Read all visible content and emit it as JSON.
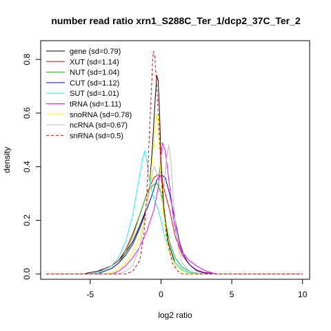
{
  "chart_data": {
    "type": "line",
    "title": "number read ratio xrn1_S288C_Ter_1/dcp2_37C_Ter_2",
    "xlabel": "log2 ratio",
    "ylabel": "density",
    "xlim": [
      -8.5,
      10.5
    ],
    "ylim": [
      -0.02,
      0.87
    ],
    "x_ticks": [
      -5,
      0,
      5,
      10
    ],
    "x_tick_labels": [
      "-5",
      "0",
      "5",
      "10"
    ],
    "y_ticks": [
      0.0,
      0.2,
      0.4,
      0.6,
      0.8
    ],
    "y_tick_labels": [
      "0.0",
      "0.2",
      "0.4",
      "0.6",
      "0.8"
    ],
    "grid": false,
    "legend_position": "top-left",
    "series": [
      {
        "name": "gene (sd=0.79)",
        "color": "#000000",
        "dash": "solid",
        "points": [
          [
            -8.1,
            0
          ],
          [
            -5.5,
            0
          ],
          [
            -4.5,
            0.01
          ],
          [
            -3.5,
            0.03
          ],
          [
            -3,
            0.05
          ],
          [
            -2.5,
            0.08
          ],
          [
            -2,
            0.12
          ],
          [
            -1.5,
            0.18
          ],
          [
            -1.2,
            0.22
          ],
          [
            -1,
            0.25
          ],
          [
            -0.8,
            0.33
          ],
          [
            -0.6,
            0.48
          ],
          [
            -0.4,
            0.66
          ],
          [
            -0.3,
            0.74
          ],
          [
            -0.2,
            0.72
          ],
          [
            -0.1,
            0.6
          ],
          [
            0,
            0.42
          ],
          [
            0.2,
            0.25
          ],
          [
            0.5,
            0.12
          ],
          [
            1,
            0.04
          ],
          [
            1.5,
            0.015
          ],
          [
            2,
            0.005
          ],
          [
            3,
            0
          ],
          [
            10,
            0
          ]
        ]
      },
      {
        "name": "XUT (sd=1.14)",
        "color": "#ff0000",
        "dash": "solid",
        "points": [
          [
            -8.1,
            0
          ],
          [
            -5,
            0
          ],
          [
            -4.5,
            0.005
          ],
          [
            -4,
            0.02
          ],
          [
            -3.5,
            0.03
          ],
          [
            -3,
            0.05
          ],
          [
            -2.5,
            0.09
          ],
          [
            -2,
            0.15
          ],
          [
            -1.5,
            0.22
          ],
          [
            -1,
            0.3
          ],
          [
            -0.5,
            0.36
          ],
          [
            -0.2,
            0.37
          ],
          [
            0,
            0.36
          ],
          [
            0.3,
            0.3
          ],
          [
            0.6,
            0.24
          ],
          [
            1,
            0.14
          ],
          [
            1.5,
            0.07
          ],
          [
            2,
            0.035
          ],
          [
            2.5,
            0.015
          ],
          [
            3,
            0.006
          ],
          [
            4,
            0
          ],
          [
            10,
            0
          ]
        ]
      },
      {
        "name": "NUT (sd=1.04)",
        "color": "#00cc00",
        "dash": "solid",
        "points": [
          [
            -8.1,
            0
          ],
          [
            -4.5,
            0
          ],
          [
            -4,
            0.01
          ],
          [
            -3.5,
            0.02
          ],
          [
            -3,
            0.04
          ],
          [
            -2.5,
            0.08
          ],
          [
            -2,
            0.14
          ],
          [
            -1.5,
            0.22
          ],
          [
            -1,
            0.3
          ],
          [
            -0.6,
            0.33
          ],
          [
            -0.3,
            0.34
          ],
          [
            0,
            0.3
          ],
          [
            0.3,
            0.2
          ],
          [
            0.6,
            0.12
          ],
          [
            1,
            0.06
          ],
          [
            1.5,
            0.025
          ],
          [
            2,
            0.01
          ],
          [
            2.5,
            0.003
          ],
          [
            3,
            0
          ],
          [
            10,
            0
          ]
        ]
      },
      {
        "name": "CUT (sd=1.12)",
        "color": "#0000ff",
        "dash": "solid",
        "points": [
          [
            -8.1,
            0
          ],
          [
            -4.5,
            0
          ],
          [
            -4,
            0.01
          ],
          [
            -3.5,
            0.02
          ],
          [
            -3,
            0.04
          ],
          [
            -2.5,
            0.07
          ],
          [
            -2,
            0.11
          ],
          [
            -1.5,
            0.17
          ],
          [
            -1,
            0.24
          ],
          [
            -0.6,
            0.3
          ],
          [
            -0.3,
            0.35
          ],
          [
            0,
            0.37
          ],
          [
            0.3,
            0.36
          ],
          [
            0.6,
            0.3
          ],
          [
            1,
            0.2
          ],
          [
            1.3,
            0.12
          ],
          [
            1.6,
            0.07
          ],
          [
            2,
            0.035
          ],
          [
            2.5,
            0.012
          ],
          [
            3,
            0.004
          ],
          [
            4,
            0
          ],
          [
            10,
            0
          ]
        ]
      },
      {
        "name": "SUT (sd=1.01)",
        "color": "#00ffff",
        "dash": "solid",
        "points": [
          [
            -8.1,
            0
          ],
          [
            -5,
            0
          ],
          [
            -4.5,
            0.005
          ],
          [
            -4,
            0.015
          ],
          [
            -3.5,
            0.03
          ],
          [
            -3,
            0.06
          ],
          [
            -2.5,
            0.12
          ],
          [
            -2,
            0.22
          ],
          [
            -1.6,
            0.34
          ],
          [
            -1.3,
            0.43
          ],
          [
            -1.15,
            0.46
          ],
          [
            -1,
            0.42
          ],
          [
            -0.8,
            0.34
          ],
          [
            -0.5,
            0.28
          ],
          [
            -0.2,
            0.24
          ],
          [
            0,
            0.2
          ],
          [
            0.3,
            0.13
          ],
          [
            0.6,
            0.08
          ],
          [
            1,
            0.04
          ],
          [
            1.5,
            0.015
          ],
          [
            2,
            0.005
          ],
          [
            3,
            0
          ],
          [
            10,
            0
          ]
        ]
      },
      {
        "name": "tRNA (sd=1.11)",
        "color": "#ff00ff",
        "dash": "solid",
        "points": [
          [
            -8.1,
            0
          ],
          [
            -3.5,
            0
          ],
          [
            -3,
            0.01
          ],
          [
            -2.5,
            0.03
          ],
          [
            -2,
            0.06
          ],
          [
            -1.5,
            0.1
          ],
          [
            -1,
            0.16
          ],
          [
            -0.5,
            0.24
          ],
          [
            -0.2,
            0.32
          ],
          [
            0,
            0.44
          ],
          [
            0.1,
            0.49
          ],
          [
            0.3,
            0.46
          ],
          [
            0.6,
            0.33
          ],
          [
            0.9,
            0.2
          ],
          [
            1.2,
            0.12
          ],
          [
            1.5,
            0.08
          ],
          [
            2,
            0.05
          ],
          [
            2.5,
            0.03
          ],
          [
            3,
            0.015
          ],
          [
            3.5,
            0.005
          ],
          [
            4,
            0
          ],
          [
            10,
            0
          ]
        ]
      },
      {
        "name": "snoRNA (sd=0.78)",
        "color": "#ffff00",
        "dash": "solid",
        "points": [
          [
            -8.1,
            0
          ],
          [
            -4,
            0
          ],
          [
            -3.5,
            0.005
          ],
          [
            -3,
            0.02
          ],
          [
            -2.5,
            0.04
          ],
          [
            -2,
            0.08
          ],
          [
            -1.5,
            0.14
          ],
          [
            -1.1,
            0.22
          ],
          [
            -0.8,
            0.32
          ],
          [
            -0.6,
            0.44
          ],
          [
            -0.4,
            0.56
          ],
          [
            -0.3,
            0.6
          ],
          [
            -0.2,
            0.55
          ],
          [
            0,
            0.35
          ],
          [
            0.2,
            0.2
          ],
          [
            0.5,
            0.09
          ],
          [
            1,
            0.03
          ],
          [
            1.5,
            0.01
          ],
          [
            2,
            0
          ],
          [
            10,
            0
          ]
        ]
      },
      {
        "name": "ncRNA (sd=0.67)",
        "color": "#bebebe",
        "dash": "solid",
        "points": [
          [
            -8.1,
            0
          ],
          [
            -3,
            0
          ],
          [
            -2.5,
            0.01
          ],
          [
            -2,
            0.03
          ],
          [
            -1.5,
            0.1
          ],
          [
            -1,
            0.25
          ],
          [
            -0.7,
            0.35
          ],
          [
            -0.5,
            0.4
          ],
          [
            -0.3,
            0.38
          ],
          [
            0,
            0.3
          ],
          [
            0.2,
            0.32
          ],
          [
            0.4,
            0.44
          ],
          [
            0.55,
            0.48
          ],
          [
            0.7,
            0.42
          ],
          [
            0.9,
            0.25
          ],
          [
            1.2,
            0.1
          ],
          [
            1.5,
            0.04
          ],
          [
            2,
            0.01
          ],
          [
            2.5,
            0
          ],
          [
            10,
            0
          ]
        ]
      },
      {
        "name": "snRNA (sd=0.5)",
        "color": "#ff0000",
        "dash": "dashed",
        "points": [
          [
            -8.1,
            0
          ],
          [
            -2.5,
            0
          ],
          [
            -2,
            0.01
          ],
          [
            -1.5,
            0.05
          ],
          [
            -1.2,
            0.15
          ],
          [
            -1,
            0.3
          ],
          [
            -0.8,
            0.55
          ],
          [
            -0.6,
            0.78
          ],
          [
            -0.55,
            0.83
          ],
          [
            -0.45,
            0.82
          ],
          [
            -0.3,
            0.7
          ],
          [
            -0.1,
            0.5
          ],
          [
            0.1,
            0.3
          ],
          [
            0.4,
            0.14
          ],
          [
            0.8,
            0.04
          ],
          [
            1.2,
            0.01
          ],
          [
            1.5,
            0
          ],
          [
            10,
            0
          ]
        ]
      }
    ]
  }
}
